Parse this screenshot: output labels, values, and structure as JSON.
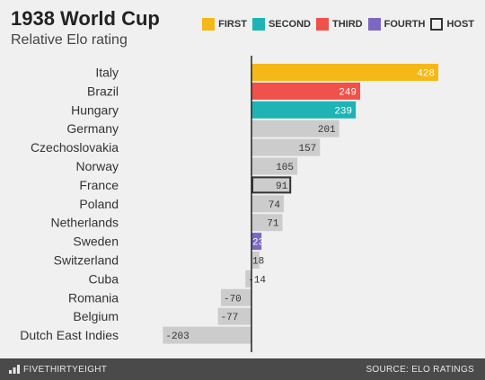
{
  "header": {
    "title": "1938 World Cup",
    "subtitle": "Relative Elo rating"
  },
  "legend": [
    {
      "label": "FIRST",
      "color": "#f5b816",
      "outline": false
    },
    {
      "label": "SECOND",
      "color": "#1fb3b3",
      "outline": false
    },
    {
      "label": "THIRD",
      "color": "#f0514a",
      "outline": false
    },
    {
      "label": "FOURTH",
      "color": "#7b68c2",
      "outline": false
    },
    {
      "label": "HOST",
      "color": "#333333",
      "outline": true
    }
  ],
  "footer": {
    "brand": "FIVETHIRTYEIGHT",
    "source": "SOURCE: ELO RATINGS"
  },
  "chart_data": {
    "type": "bar",
    "orientation": "horizontal",
    "title": "1938 World Cup",
    "subtitle": "Relative Elo rating",
    "categories": [
      "Italy",
      "Brazil",
      "Hungary",
      "Germany",
      "Czechoslovakia",
      "Norway",
      "France",
      "Poland",
      "Netherlands",
      "Sweden",
      "Switzerland",
      "Cuba",
      "Romania",
      "Belgium",
      "Dutch East Indies"
    ],
    "values": [
      428,
      249,
      239,
      201,
      157,
      105,
      91,
      74,
      71,
      23,
      18,
      -14,
      -70,
      -77,
      -203
    ],
    "roles": [
      "first",
      "third",
      "second",
      "none",
      "none",
      "none",
      "host",
      "none",
      "none",
      "fourth",
      "none",
      "none",
      "none",
      "none",
      "none"
    ],
    "role_colors": {
      "first": "#f5b816",
      "second": "#1fb3b3",
      "third": "#f0514a",
      "fourth": "#7b68c2",
      "host": "#cccccc",
      "none": "#cccccc"
    },
    "host_outline": "#333333",
    "xlim": [
      -240,
      460
    ],
    "grid": false,
    "legend_position": "top-right"
  }
}
